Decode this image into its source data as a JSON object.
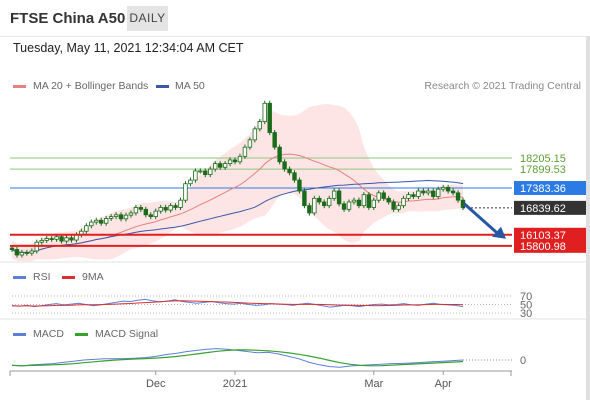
{
  "header": {
    "title": "FTSE China A50",
    "period_label": "DAILY",
    "timestamp": "Tuesday, May 11, 2021 12:34:04 AM CET"
  },
  "legend": {
    "ma20_label": "MA 20 + Bollinger Bands",
    "ma50_label": "MA 50",
    "credit": "Research © 2021 Trading Central",
    "rsi_label": "RSI",
    "rsi_ma_label": "9MA",
    "macd_label": "MACD",
    "macd_signal_label": "MACD Signal"
  },
  "colors": {
    "candle": "#1a6b1a",
    "ma20": "#e88080",
    "ma50": "#3b57a8",
    "bollinger_fill": "#fde0e0",
    "resistance": "#8ec67a",
    "resistance_text": "#5da03a",
    "current": "#2c7be5",
    "support": "#e02020",
    "last": "#333333",
    "arrow": "#2557a4",
    "rsi": "#5d7fd9",
    "rsi_ma": "#d83030",
    "macd": "#5d7fd9",
    "macd_signal": "#39a12f"
  },
  "chart_data": [
    {
      "type": "candlestick",
      "x_tick_labels": [
        "Dec",
        "2021",
        "Mar",
        "Apr"
      ],
      "ylim": [
        15550,
        19900
      ],
      "approx_close_series": [
        15700,
        15550,
        15620,
        15600,
        15660,
        15900,
        15950,
        16000,
        15980,
        16050,
        15930,
        16020,
        15960,
        16100,
        16200,
        16350,
        16450,
        16500,
        16420,
        16550,
        16600,
        16650,
        16540,
        16640,
        16700,
        16850,
        16800,
        16650,
        16600,
        16750,
        16850,
        16780,
        16900,
        16850,
        17050,
        17500,
        17600,
        17850,
        17850,
        17750,
        17900,
        18050,
        17950,
        18050,
        18150,
        18100,
        18250,
        18500,
        18700,
        19000,
        19200,
        19700,
        18900,
        18500,
        18100,
        17900,
        17800,
        17600,
        17300,
        16900,
        16700,
        17100,
        17000,
        16900,
        17100,
        17300,
        16950,
        16800,
        17000,
        17050,
        16900,
        17200,
        16850,
        17050,
        17250,
        17100,
        17000,
        16800,
        16900,
        17100,
        17200,
        17150,
        17300,
        17250,
        17300,
        17150,
        17350,
        17400,
        17300,
        17250,
        17050,
        16850
      ],
      "lines": {
        "resistance_2": {
          "value": 18205.15,
          "label": "18205.15"
        },
        "resistance_1": {
          "value": 17899.53,
          "label": "17899.53"
        },
        "current": {
          "value": 17383.36,
          "label": "17383.36"
        },
        "last": {
          "value": 16839.62,
          "label": "16839.62"
        },
        "support_1": {
          "value": 16103.37,
          "label": "16103.37"
        },
        "support_2": {
          "value": 15800.98,
          "label": "15800.98"
        }
      }
    },
    {
      "type": "line",
      "series": [
        {
          "name": "RSI"
        },
        {
          "name": "9MA"
        }
      ],
      "y_tick_labels": [
        "70",
        "50",
        "30"
      ],
      "approx_rsi": [
        47,
        46,
        48,
        45,
        47,
        50,
        52,
        49,
        51,
        53,
        50,
        47,
        49,
        52,
        55,
        58,
        57,
        60,
        62,
        59,
        56,
        58,
        61,
        57,
        55,
        53,
        55,
        57,
        54,
        52,
        51,
        53,
        50,
        48,
        49,
        52,
        51,
        50,
        48,
        51,
        53,
        50,
        47,
        44,
        46,
        48,
        47,
        45,
        48,
        50,
        51,
        49,
        50,
        52,
        49,
        48,
        51,
        53,
        50,
        49,
        48,
        45
      ]
    },
    {
      "type": "line",
      "series": [
        {
          "name": "MACD"
        },
        {
          "name": "MACD Signal"
        }
      ],
      "y_tick_labels": [
        "0"
      ],
      "approx_macd": [
        -0.45,
        -0.5,
        -0.4,
        -0.35,
        -0.3,
        -0.2,
        -0.1,
        0.0,
        0.05,
        0.1,
        0.1,
        0.12,
        0.15,
        0.2,
        0.3,
        0.45,
        0.55,
        0.7,
        0.8,
        0.9,
        0.95,
        0.9,
        0.8,
        0.7,
        0.6,
        0.65,
        0.5,
        0.3,
        0.1,
        -0.2,
        -0.4,
        -0.55,
        -0.6,
        -0.5,
        -0.45,
        -0.4,
        -0.35,
        -0.3,
        -0.28,
        -0.25,
        -0.2,
        -0.15,
        -0.1,
        -0.05,
        0.0
      ]
    }
  ]
}
